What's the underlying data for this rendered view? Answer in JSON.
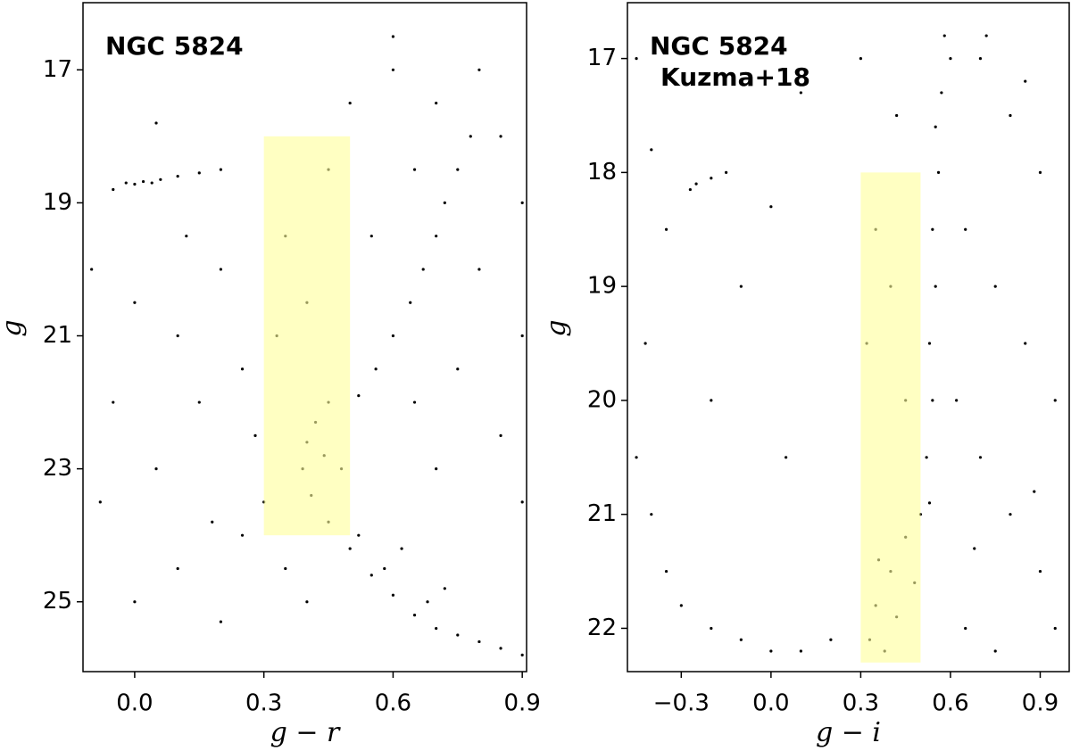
{
  "chart_data": [
    {
      "type": "scatter",
      "annotations": [
        "NGC 5824"
      ],
      "xlabel": "g − r",
      "ylabel": "g",
      "color": "#000000",
      "xlim": [
        -0.12,
        0.91
      ],
      "ylim": [
        15.99,
        26.05
      ],
      "y_inverted": true,
      "xticks": [
        {
          "value": 0,
          "label": "0.0"
        },
        0.3,
        0.6,
        0.9
      ],
      "yticks": [
        17,
        19,
        21,
        23,
        25
      ],
      "highlight": {
        "x": [
          0.3,
          0.5
        ],
        "y": [
          18,
          24
        ],
        "color": "#ffff99"
      },
      "x": [
        -0.02,
        0.0,
        0.02,
        0.04,
        0.06,
        0.1,
        0.15,
        0.2,
        -0.05,
        0.78,
        0.75,
        0.72,
        0.7,
        0.67,
        0.64,
        0.6,
        0.56,
        0.52,
        0.45,
        0.42,
        0.4,
        0.39,
        0.41,
        0.45,
        0.5,
        0.55,
        0.6,
        0.65,
        0.7,
        0.75,
        0.8,
        0.85,
        0.9,
        0.48,
        0.44,
        0.52,
        0.58,
        0.62,
        0.68,
        0.72,
        0.6,
        0.7,
        0.8,
        0.85,
        0.9,
        0.65,
        0.55,
        0.8,
        0.9,
        0.75,
        0.85,
        0.65,
        0.7,
        0.9,
        0.6,
        0.5,
        0.45,
        0.35,
        0.4,
        0.33,
        -0.1,
        0.0,
        0.1,
        -0.05,
        0.05,
        0.15,
        0.2,
        0.25,
        0.1,
        0.0,
        0.2,
        -0.08,
        0.12,
        0.05,
        0.25,
        0.3,
        0.35,
        0.4,
        0.28,
        0.18
      ],
      "y": [
        18.7,
        18.72,
        18.68,
        18.7,
        18.65,
        18.6,
        18.55,
        18.5,
        18.8,
        18.0,
        18.5,
        19.0,
        19.5,
        20.0,
        20.5,
        21.0,
        21.5,
        21.9,
        22.0,
        22.3,
        22.6,
        23.0,
        23.4,
        23.8,
        24.2,
        24.6,
        24.9,
        25.2,
        25.4,
        25.5,
        25.6,
        25.7,
        25.8,
        23.0,
        22.8,
        24.0,
        24.5,
        24.2,
        25.0,
        24.8,
        17.0,
        17.5,
        17.0,
        18.0,
        19.0,
        18.5,
        19.5,
        20.0,
        21.0,
        21.5,
        22.5,
        22.0,
        23.0,
        23.5,
        16.5,
        17.5,
        18.5,
        19.5,
        20.5,
        21.0,
        20.0,
        20.5,
        21.0,
        22.0,
        23.0,
        22.0,
        20.0,
        24.0,
        24.5,
        25.0,
        25.3,
        23.5,
        19.5,
        17.8,
        21.5,
        23.5,
        24.5,
        25.0,
        22.5,
        23.8
      ]
    },
    {
      "type": "scatter",
      "annotations": [
        "NGC 5824",
        "Kuzma+18"
      ],
      "xlabel": "g − i",
      "ylabel": "g",
      "color": "#000000",
      "xlim": [
        -0.48,
        0.997
      ],
      "ylim": [
        16.51,
        22.38
      ],
      "y_inverted": true,
      "xticks": [
        {
          "value": -0.3,
          "label": "−0.3"
        },
        {
          "value": 0,
          "label": "0.0"
        },
        0.3,
        0.6,
        0.9
      ],
      "yticks": [
        17,
        18,
        19,
        20,
        21,
        22
      ],
      "highlight": {
        "x": [
          0.3,
          0.5
        ],
        "y": [
          18,
          22.3
        ],
        "color": "#ffff99"
      },
      "x": [
        0.58,
        0.6,
        0.57,
        0.55,
        0.56,
        0.54,
        0.55,
        0.53,
        0.54,
        0.52,
        0.53,
        0.5,
        0.45,
        0.4,
        0.35,
        0.33,
        0.38,
        0.42,
        0.36,
        0.48,
        0.7,
        0.8,
        0.9,
        0.65,
        0.75,
        0.85,
        0.95,
        0.7,
        0.8,
        0.9,
        0.65,
        0.75,
        0.95,
        0.85,
        0.72,
        0.62,
        0.68,
        0.88,
        0.4,
        0.35,
        0.45,
        0.32,
        0.42,
        0.3,
        -0.45,
        -0.4,
        -0.35,
        -0.25,
        -0.27,
        -0.2,
        -0.42,
        -0.45,
        -0.4,
        -0.35,
        -0.3,
        -0.2,
        -0.1,
        0.0,
        0.1,
        0.2,
        -0.15,
        0.0,
        -0.1,
        0.05,
        -0.2,
        0.1
      ],
      "y": [
        16.8,
        17.0,
        17.3,
        17.6,
        18.0,
        18.5,
        19.0,
        19.5,
        20.0,
        20.5,
        20.9,
        21.0,
        21.2,
        21.5,
        21.8,
        22.1,
        22.2,
        21.9,
        21.4,
        21.6,
        17.0,
        17.5,
        18.0,
        18.5,
        19.0,
        19.5,
        20.0,
        20.5,
        21.0,
        21.5,
        22.0,
        22.2,
        22.0,
        17.2,
        16.8,
        20.0,
        21.3,
        20.8,
        19.0,
        18.5,
        20.0,
        19.5,
        17.5,
        17.0,
        17.0,
        17.8,
        18.5,
        18.1,
        18.15,
        18.05,
        19.5,
        20.5,
        21.0,
        21.5,
        21.8,
        22.0,
        22.1,
        22.2,
        22.2,
        22.1,
        18.0,
        18.3,
        19.0,
        20.5,
        20.0,
        17.3
      ]
    }
  ]
}
